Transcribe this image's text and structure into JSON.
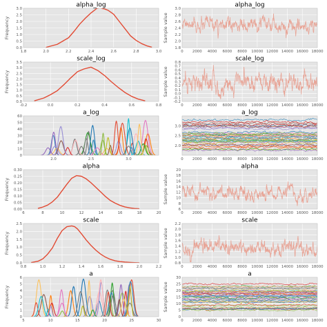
{
  "figure": {
    "background": "#ffffff",
    "panel_background": "#e5e5e5",
    "grid_color": "#ffffff",
    "kde_color": "#e24a33",
    "trace_color": "#e8a496"
  },
  "chart_data": [
    {
      "type": "line",
      "id": "alpha_log_kde",
      "title": "alpha_log",
      "ylabel": "Frequency",
      "xlim": [
        1.8,
        3.0
      ],
      "ylim": [
        0,
        3.0
      ],
      "xticks": [
        "1.8",
        "2.0",
        "2.2",
        "2.4",
        "2.6",
        "2.8",
        "3.0"
      ],
      "yticks": [
        "0.0",
        "0.5",
        "1.0",
        "1.5",
        "2.0",
        "2.5",
        "3.0"
      ],
      "grid": true,
      "series": [
        {
          "x": [
            2.0,
            2.1,
            2.2,
            2.25,
            2.3,
            2.35,
            2.4,
            2.45,
            2.48,
            2.5,
            2.52,
            2.55,
            2.6,
            2.65,
            2.7,
            2.75,
            2.8,
            2.85,
            2.9,
            2.94
          ],
          "values": [
            0.02,
            0.25,
            0.75,
            1.25,
            1.8,
            2.25,
            2.65,
            2.98,
            3.05,
            2.98,
            2.95,
            2.85,
            2.55,
            2.0,
            1.45,
            0.9,
            0.55,
            0.3,
            0.12,
            0.03
          ]
        }
      ]
    },
    {
      "type": "line",
      "id": "alpha_log_trace",
      "title": "alpha_log",
      "ylabel": "Sample value",
      "xlim": [
        0,
        18000
      ],
      "ylim": [
        1.8,
        3.0
      ],
      "xticks": [
        "0",
        "2000",
        "4000",
        "6000",
        "8000",
        "10000",
        "12000",
        "14000",
        "16000",
        "18000"
      ],
      "yticks": [
        "1.8",
        "2.0",
        "2.2",
        "2.4",
        "2.6",
        "2.8",
        "3.0"
      ],
      "grid": true,
      "series": [
        {
          "trace": true,
          "mean": 2.45,
          "sd": 0.13
        }
      ]
    },
    {
      "type": "line",
      "id": "scale_log_kde",
      "title": "scale_log",
      "ylabel": "Frequency",
      "xlim": [
        -0.2,
        0.8
      ],
      "ylim": [
        0,
        3.5
      ],
      "xticks": [
        "-0.2",
        "0.0",
        "0.2",
        "0.4",
        "0.6",
        "0.8"
      ],
      "yticks": [
        "0.0",
        "0.5",
        "1.0",
        "1.5",
        "2.0",
        "2.5",
        "3.0",
        "3.5"
      ],
      "grid": true,
      "series": [
        {
          "x": [
            -0.12,
            -0.05,
            0.0,
            0.05,
            0.1,
            0.15,
            0.2,
            0.25,
            0.3,
            0.35,
            0.4,
            0.45,
            0.5,
            0.55,
            0.6,
            0.65,
            0.7
          ],
          "values": [
            0.05,
            0.3,
            0.6,
            0.95,
            1.5,
            2.1,
            2.65,
            2.9,
            3.05,
            2.75,
            2.3,
            1.75,
            1.25,
            0.8,
            0.45,
            0.2,
            0.05
          ]
        }
      ]
    },
    {
      "type": "line",
      "id": "scale_log_trace",
      "title": "scale_log",
      "ylabel": "Sample value",
      "xlim": [
        0,
        18000
      ],
      "ylim": [
        -0.2,
        0.8
      ],
      "xticks": [
        "0",
        "2000",
        "4000",
        "6000",
        "8000",
        "10000",
        "12000",
        "14000",
        "16000",
        "18000"
      ],
      "yticks": [
        "-0.2",
        "-0.1",
        "0.0",
        "0.1",
        "0.2",
        "0.3",
        "0.4",
        "0.5",
        "0.6",
        "0.7",
        "0.8"
      ],
      "grid": true,
      "series": [
        {
          "trace": true,
          "mean": 0.27,
          "sd": 0.16
        }
      ]
    },
    {
      "type": "line",
      "id": "a_log_kde",
      "title": "a_log",
      "ylabel": "",
      "xlim": [
        1.6,
        3.4
      ],
      "ylim": [
        0,
        60
      ],
      "xticks": [
        "2.0",
        "2.5",
        "3.0"
      ],
      "xtick_values": [
        2.0,
        2.5,
        3.0
      ],
      "yticks": [
        "0",
        "10",
        "20",
        "30",
        "40",
        "50",
        "60"
      ],
      "grid": true,
      "series": [
        {
          "multi": true,
          "count": 40,
          "center_range": [
            1.85,
            3.3
          ],
          "height_range": [
            10,
            56
          ]
        }
      ]
    },
    {
      "type": "line",
      "id": "a_log_trace",
      "title": "a_log",
      "ylabel": "",
      "xlim": [
        0,
        18000
      ],
      "ylim": [
        1.5,
        3.5
      ],
      "xticks": [
        "0",
        "2000",
        "4000",
        "6000",
        "8000",
        "10000",
        "12000",
        "14000",
        "16000",
        "18000"
      ],
      "yticks": [
        "2.0",
        "2.5",
        "3.0"
      ],
      "ytick_values": [
        2.0,
        2.5,
        3.0
      ],
      "grid": true,
      "series": [
        {
          "multi": true,
          "trace": true,
          "count": 40,
          "band_range": [
            1.65,
            3.3
          ]
        }
      ]
    },
    {
      "type": "line",
      "id": "alpha_kde",
      "title": "alpha",
      "ylabel": "Frequency",
      "xlim": [
        6,
        20
      ],
      "ylim": [
        0,
        0.3
      ],
      "xticks": [
        "6",
        "8",
        "10",
        "12",
        "14",
        "16",
        "18",
        "20"
      ],
      "yticks": [
        "0.00",
        "0.05",
        "0.10",
        "0.15",
        "0.20",
        "0.25",
        "0.30"
      ],
      "grid": true,
      "series": [
        {
          "x": [
            7.5,
            8.0,
            8.5,
            9.0,
            9.5,
            10.0,
            10.5,
            11.0,
            11.5,
            12.0,
            12.5,
            13.0,
            13.5,
            14.0,
            14.5,
            15.0,
            15.5,
            16.0,
            16.5,
            17.0,
            17.5,
            18.0
          ],
          "values": [
            0.005,
            0.015,
            0.03,
            0.055,
            0.09,
            0.14,
            0.19,
            0.235,
            0.255,
            0.25,
            0.23,
            0.2,
            0.165,
            0.13,
            0.095,
            0.065,
            0.045,
            0.028,
            0.016,
            0.009,
            0.004,
            0.002
          ]
        }
      ]
    },
    {
      "type": "line",
      "id": "alpha_trace",
      "title": "alpha",
      "ylabel": "Sample value",
      "xlim": [
        0,
        18000
      ],
      "ylim": [
        6,
        20
      ],
      "xticks": [
        "0",
        "2000",
        "4000",
        "6000",
        "8000",
        "10000",
        "12000",
        "14000",
        "16000",
        "18000"
      ],
      "yticks": [
        "6",
        "8",
        "10",
        "12",
        "14",
        "16",
        "18",
        "20"
      ],
      "grid": true,
      "series": [
        {
          "trace": true,
          "mean": 11.8,
          "sd": 1.5
        }
      ]
    },
    {
      "type": "line",
      "id": "scale_kde",
      "title": "scale",
      "ylabel": "Frequency",
      "xlim": [
        0.8,
        2.2
      ],
      "ylim": [
        0,
        2.5
      ],
      "xticks": [
        "0.8",
        "1.0",
        "1.2",
        "1.4",
        "1.6",
        "1.8",
        "2.0",
        "2.2"
      ],
      "yticks": [
        "0.0",
        "0.5",
        "1.0",
        "1.5",
        "2.0",
        "2.5"
      ],
      "grid": true,
      "series": [
        {
          "x": [
            0.88,
            0.95,
            1.0,
            1.05,
            1.1,
            1.15,
            1.2,
            1.25,
            1.3,
            1.33,
            1.36,
            1.4,
            1.45,
            1.5,
            1.55,
            1.6,
            1.65,
            1.7,
            1.75,
            1.8,
            1.85,
            1.9,
            1.95,
            2.0
          ],
          "values": [
            0.02,
            0.1,
            0.25,
            0.55,
            0.95,
            1.55,
            2.05,
            2.3,
            2.35,
            2.3,
            2.15,
            1.85,
            1.45,
            1.1,
            0.8,
            0.55,
            0.36,
            0.22,
            0.13,
            0.08,
            0.05,
            0.03,
            0.015,
            0.005
          ]
        }
      ]
    },
    {
      "type": "line",
      "id": "scale_trace",
      "title": "scale",
      "ylabel": "Sample value",
      "xlim": [
        0,
        18000
      ],
      "ylim": [
        0.8,
        2.2
      ],
      "xticks": [
        "0",
        "2000",
        "4000",
        "6000",
        "8000",
        "10000",
        "12000",
        "14000",
        "16000",
        "18000"
      ],
      "yticks": [
        "0.8",
        "1.0",
        "1.2",
        "1.4",
        "1.6",
        "1.8",
        "2.0",
        "2.2"
      ],
      "grid": true,
      "series": [
        {
          "trace": true,
          "mean": 1.32,
          "sd": 0.17
        }
      ]
    },
    {
      "type": "line",
      "id": "a_kde",
      "title": "a",
      "ylabel": "Frequency",
      "xlim": [
        5,
        30
      ],
      "ylim": [
        0,
        6
      ],
      "xticks": [
        "5",
        "10",
        "15",
        "20",
        "25",
        "30"
      ],
      "yticks": [
        "0",
        "1",
        "2",
        "3",
        "4",
        "5",
        "6"
      ],
      "grid": true,
      "series": [
        {
          "multi": true,
          "count": 40,
          "center_range": [
            6.5,
            25
          ],
          "height_range": [
            0.8,
            5.8
          ]
        }
      ]
    },
    {
      "type": "line",
      "id": "a_trace",
      "title": "a",
      "ylabel": "Sample value",
      "xlim": [
        0,
        18000
      ],
      "ylim": [
        0,
        30
      ],
      "xticks": [
        "0",
        "2000",
        "4000",
        "6000",
        "8000",
        "10000",
        "12000",
        "14000",
        "16000",
        "18000"
      ],
      "yticks": [
        "0",
        "5",
        "10",
        "15",
        "20",
        "25",
        "30"
      ],
      "grid": true,
      "series": [
        {
          "multi": true,
          "trace": true,
          "count": 40,
          "band_range": [
            5,
            25
          ]
        }
      ]
    }
  ]
}
